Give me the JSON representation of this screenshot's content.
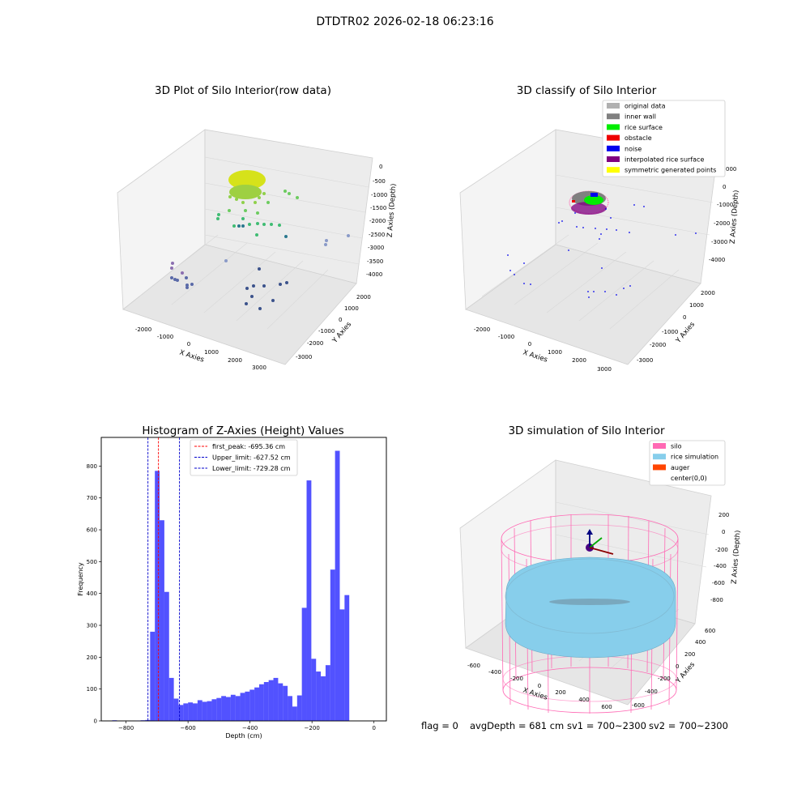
{
  "suptitle": "DTDTR02 2026-02-18 06:23:16",
  "panels": {
    "raw": {
      "title": "3D Plot of Silo Interior(row data)",
      "xlabel": "X Axies",
      "ylabel": "Y Axies",
      "zlabel": "Z Axies (Depth)",
      "xticks": [
        "-2000",
        "-1000",
        "0",
        "1000",
        "2000",
        "3000"
      ],
      "yticks": [
        "2000",
        "1000",
        "0",
        "-1000",
        "-2000",
        "-3000"
      ],
      "zticks": [
        "0",
        "-500",
        "-1000",
        "-1500",
        "-2000",
        "-2500",
        "-3000",
        "-3500",
        "-4000"
      ]
    },
    "classify": {
      "title": "3D classify of Silo Interior",
      "xlabel": "X Axies",
      "ylabel": "Y Axies",
      "zlabel": "Z Axies (Depth)",
      "xticks": [
        "-2000",
        "-1000",
        "0",
        "1000",
        "2000",
        "3000"
      ],
      "yticks": [
        "2000",
        "1000",
        "0",
        "-1000",
        "-2000",
        "-3000"
      ],
      "zticks": [
        "0",
        "-1000",
        "-2000",
        "-3000",
        "-4000"
      ],
      "zticks_partial": [
        "000"
      ],
      "legend": [
        {
          "label": "original data",
          "color": "#b0b0b0"
        },
        {
          "label": "inner wall",
          "color": "#808080"
        },
        {
          "label": "rice surface",
          "color": "#00ee00"
        },
        {
          "label": "obstacle",
          "color": "#ee0000"
        },
        {
          "label": "noise",
          "color": "#0000ee"
        },
        {
          "label": "interpolated rice surface",
          "color": "#800080"
        },
        {
          "label": "symmetric generated points",
          "color": "#ffff00"
        }
      ]
    },
    "simulation": {
      "title": "3D simulation of Silo Interior",
      "xlabel": "X Axies",
      "ylabel": "Y Axies",
      "zlabel": "Z Axies (Depth)",
      "xticks": [
        "-600",
        "-400",
        "-200",
        "0",
        "200",
        "400",
        "600"
      ],
      "yticks": [
        "600",
        "400",
        "200",
        "0",
        "-200",
        "-400",
        "-600"
      ],
      "zticks": [
        "200",
        "0",
        "-200",
        "-400",
        "-600",
        "-800"
      ],
      "legend": [
        {
          "label": "silo",
          "color": "#ff69b4"
        },
        {
          "label": "rice simulation",
          "color": "#87ceeb"
        },
        {
          "label": "auger",
          "color": "#ff4500"
        },
        {
          "label": "center(0,0)",
          "color": ""
        }
      ]
    }
  },
  "status": {
    "flag": "flag = 0",
    "avg_depth": "avgDepth = 681 cm",
    "sv1": "sv1 = 700~2300",
    "sv2": "sv2 = 700~2300"
  },
  "chart_data": {
    "type": "bar",
    "title": "Histogram of Z-Axies (Height) Values",
    "xlabel": "Depth (cm)",
    "ylabel": "Frequency",
    "xlim": [
      -880,
      40
    ],
    "ylim": [
      0,
      890
    ],
    "xticks": [
      -800,
      -600,
      -400,
      -200,
      0
    ],
    "yticks": [
      0,
      100,
      200,
      300,
      400,
      500,
      600,
      700,
      800
    ],
    "bin_width": 15.3,
    "bin_start": -860,
    "counts": [
      0,
      2,
      0,
      0,
      0,
      0,
      1,
      2,
      3,
      280,
      785,
      630,
      405,
      135,
      70,
      50,
      55,
      58,
      55,
      65,
      60,
      62,
      68,
      72,
      78,
      75,
      82,
      78,
      88,
      92,
      98,
      105,
      115,
      122,
      128,
      135,
      118,
      110,
      78,
      45,
      80,
      355,
      755,
      195,
      155,
      140,
      175,
      475,
      848,
      350,
      395
    ],
    "bar_color": "#0000ff",
    "vlines": [
      {
        "label": "first_peak: -695.36 cm",
        "x": -695.36,
        "color": "#ff0000"
      },
      {
        "label": "Upper_limit: -627.52 cm",
        "x": -627.52,
        "color": "#0000cc"
      },
      {
        "label": "Lower_limit: -729.28 cm",
        "x": -729.28,
        "color": "#0000cc"
      }
    ],
    "legend_position": "top-center"
  }
}
